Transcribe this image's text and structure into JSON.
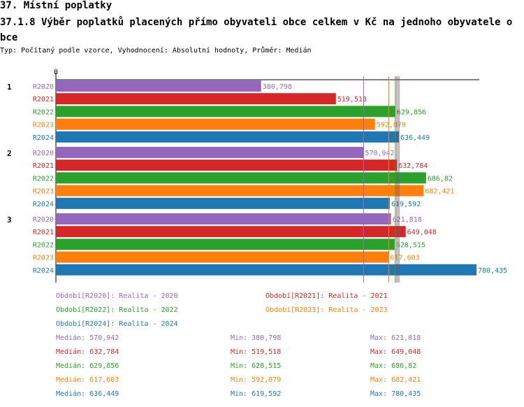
{
  "header": {
    "title": "37. Místní poplatky",
    "subtitle": "37.1.8 Výběr poplatků placených přímo obyvateli obce celkem  v Kč na jednoho obyvatele obce",
    "info": "Typ: Počítaný podle vzorce, Vyhodnocení: Absolutní hodnoty, Průměr: Medián"
  },
  "colors": {
    "R2020": "#9467bd",
    "R2021": "#d62728",
    "R2022": "#2ca02c",
    "R2023": "#ff7f0e",
    "R2024": "#1f77b4"
  },
  "chart_data": {
    "type": "bar",
    "orientation": "horizontal",
    "axis_zero_label": "0",
    "xlim": [
      0,
      780.435
    ],
    "groups": [
      {
        "label": "1",
        "bars": [
          {
            "series": "R2020",
            "value": 380.798,
            "label": "380,798"
          },
          {
            "series": "R2021",
            "value": 519.518,
            "label": "519,518"
          },
          {
            "series": "R2022",
            "value": 629.856,
            "label": "629,856"
          },
          {
            "series": "R2023",
            "value": 592.079,
            "label": "592,079"
          },
          {
            "series": "R2024",
            "value": 636.449,
            "label": "636,449"
          }
        ]
      },
      {
        "label": "2",
        "bars": [
          {
            "series": "R2020",
            "value": 570.942,
            "label": "570,942"
          },
          {
            "series": "R2021",
            "value": 632.784,
            "label": "632,784"
          },
          {
            "series": "R2022",
            "value": 686.82,
            "label": "686,82"
          },
          {
            "series": "R2023",
            "value": 682.421,
            "label": "682,421"
          },
          {
            "series": "R2024",
            "value": 619.592,
            "label": "619,592"
          }
        ]
      },
      {
        "label": "3",
        "bars": [
          {
            "series": "R2020",
            "value": 621.818,
            "label": "621,818"
          },
          {
            "series": "R2021",
            "value": 649.048,
            "label": "649,048"
          },
          {
            "series": "R2022",
            "value": 628.515,
            "label": "628,515"
          },
          {
            "series": "R2023",
            "value": 617.603,
            "label": "617,603"
          },
          {
            "series": "R2024",
            "value": 780.435,
            "label": "780,435"
          }
        ]
      }
    ],
    "median_lines": [
      {
        "series": "R2020",
        "value": 570.942
      },
      {
        "series": "R2021",
        "value": 632.784
      },
      {
        "series": "R2022",
        "value": 629.856
      },
      {
        "series": "R2023",
        "value": 617.603
      },
      {
        "series": "R2024",
        "value": 636.449
      }
    ]
  },
  "legend": [
    {
      "series": "R2020",
      "text": "Období[R2020]: Realita - 2020"
    },
    {
      "series": "R2021",
      "text": "Období[R2021]: Realita - 2021"
    },
    {
      "series": "R2022",
      "text": "Období[R2022]: Realita - 2022"
    },
    {
      "series": "R2023",
      "text": "Období[R2023]: Realita - 2023"
    },
    {
      "series": "R2024",
      "text": "Období[R2024]: Realita - 2024"
    }
  ],
  "stats": [
    {
      "series": "R2020",
      "median": "Medián: 570,942",
      "min": "Min: 380,798",
      "max": "Max: 621,818"
    },
    {
      "series": "R2021",
      "median": "Medián: 632,784",
      "min": "Min: 519,518",
      "max": "Max: 649,048"
    },
    {
      "series": "R2022",
      "median": "Medián: 629,856",
      "min": "Min: 628,515",
      "max": "Max: 686,82"
    },
    {
      "series": "R2023",
      "median": "Medián: 617,603",
      "min": "Min: 592,079",
      "max": "Max: 682,421"
    },
    {
      "series": "R2024",
      "median": "Medián: 636,449",
      "min": "Min: 619,592",
      "max": "Max: 780,435"
    }
  ]
}
